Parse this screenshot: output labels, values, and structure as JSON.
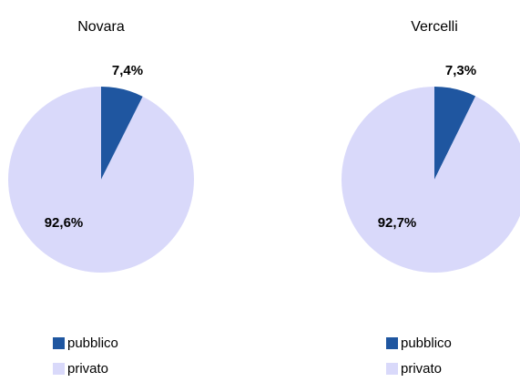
{
  "chart_data": [
    {
      "type": "pie",
      "title": "Novara",
      "categories": [
        "pubblico",
        "privato"
      ],
      "values": [
        7.4,
        92.6
      ],
      "value_labels": [
        "7,4%",
        "92,6%"
      ],
      "colors": [
        "#1f56a0",
        "#d9d9fa"
      ]
    },
    {
      "type": "pie",
      "title": "Vercelli",
      "categories": [
        "pubblico",
        "privato"
      ],
      "values": [
        7.3,
        92.7
      ],
      "value_labels": [
        "7,3%",
        "92,7%"
      ],
      "colors": [
        "#1f56a0",
        "#d9d9fa"
      ]
    }
  ]
}
